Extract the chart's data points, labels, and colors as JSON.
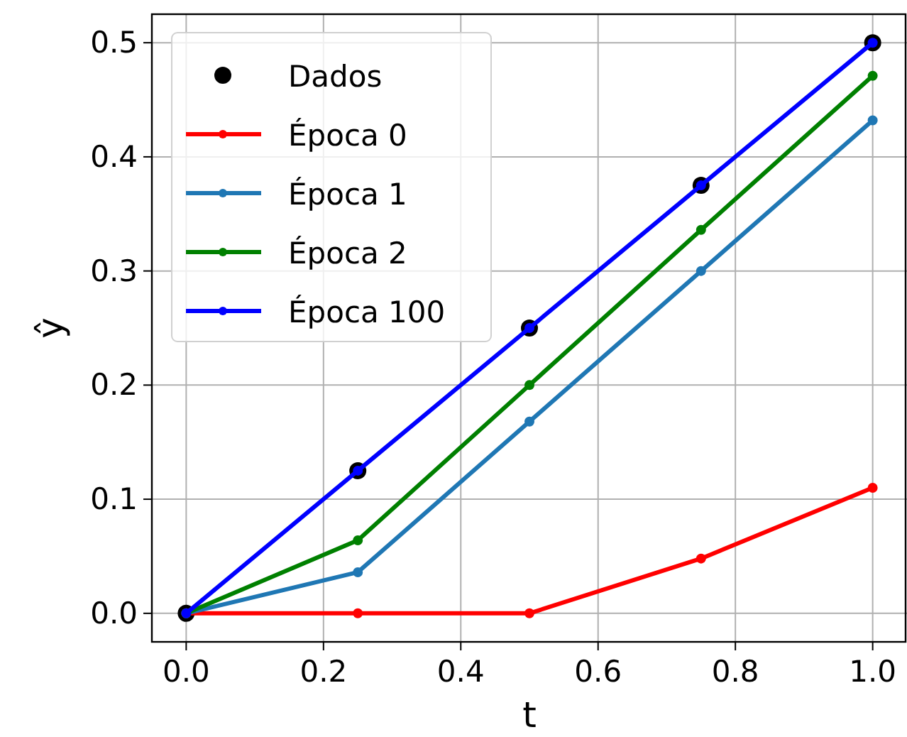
{
  "chart_data": {
    "type": "line",
    "xlabel": "t",
    "ylabel": "ŷ",
    "x": [
      0,
      0.25,
      0.5,
      0.75,
      1
    ],
    "series": [
      {
        "name": "Dados",
        "type": "scatter",
        "color": "#000000",
        "values": [
          0,
          0.125,
          0.25,
          0.375,
          0.5
        ]
      },
      {
        "name": "Época 0",
        "color": "#ff0000",
        "values": [
          0,
          0,
          0,
          0.048,
          0.11
        ]
      },
      {
        "name": "Época 1",
        "color": "#1f77b4",
        "values": [
          0,
          0.036,
          0.168,
          0.3,
          0.432
        ]
      },
      {
        "name": "Época 2",
        "color": "#008000",
        "values": [
          0,
          0.064,
          0.2,
          0.336,
          0.471
        ]
      },
      {
        "name": "Época 100",
        "color": "#0000ff",
        "values": [
          0,
          0.125,
          0.25,
          0.375,
          0.5
        ]
      }
    ],
    "xlim": [
      -0.05,
      1.05
    ],
    "ylim": [
      -0.025,
      0.525
    ],
    "xticks": [
      {
        "value": 0,
        "label": "0.0"
      },
      0.2,
      0.4,
      0.6,
      0.8,
      {
        "value": 1,
        "label": "1.0"
      }
    ],
    "yticks": [
      {
        "value": 0,
        "label": "0.0"
      },
      0.1,
      0.2,
      0.3,
      0.4,
      0.5
    ],
    "grid": true,
    "legend": "top left",
    "marker": "circle",
    "line_style": "solid"
  }
}
